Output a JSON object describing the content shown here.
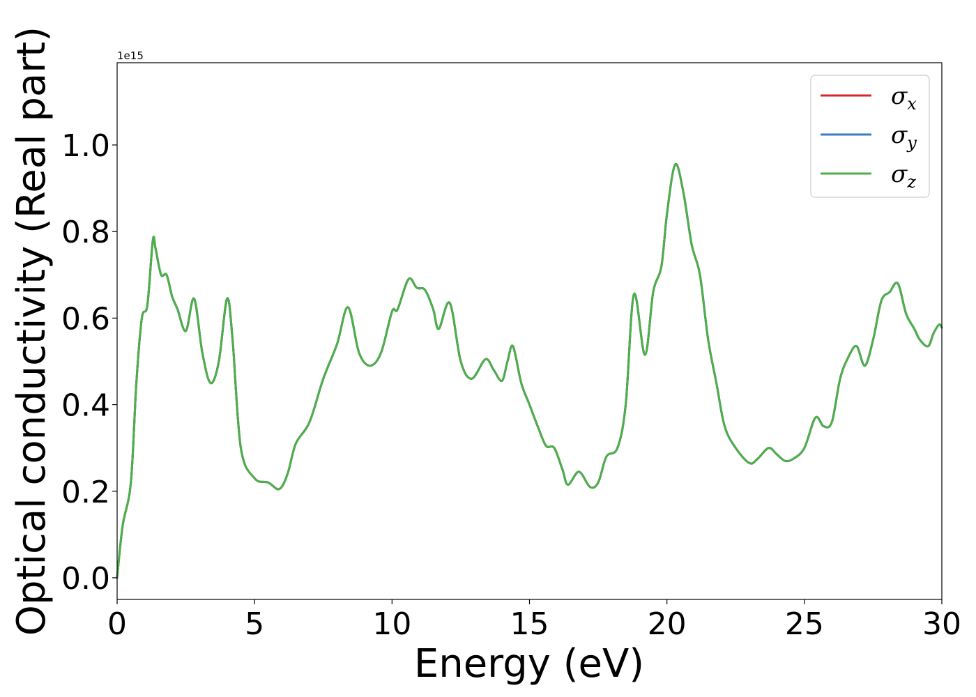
{
  "chart_data": {
    "type": "line",
    "title": "",
    "xlabel": "Energy (eV)",
    "ylabel": "Optical conductivity (Real part)",
    "y_offset_label": "1e15",
    "xlim": [
      0,
      30
    ],
    "ylim": [
      -0.05,
      1.19
    ],
    "xticks": [
      0,
      5,
      10,
      15,
      20,
      25,
      30
    ],
    "xtick_labels": [
      "0",
      "5",
      "10",
      "15",
      "20",
      "25",
      "30"
    ],
    "yticks": [
      0.0,
      0.2,
      0.4,
      0.6,
      0.8,
      1.0
    ],
    "ytick_labels": [
      "0.0",
      "0.2",
      "0.4",
      "0.6",
      "0.8",
      "1.0"
    ],
    "grid": false,
    "legend_position": "top-right",
    "x": [
      0,
      0.2,
      0.5,
      0.7,
      0.9,
      1.1,
      1.3,
      1.4,
      1.6,
      1.8,
      2.0,
      2.2,
      2.5,
      2.8,
      3.1,
      3.4,
      3.7,
      4.0,
      4.2,
      4.5,
      5.0,
      5.5,
      5.9,
      6.2,
      6.5,
      7.0,
      7.5,
      8.0,
      8.4,
      8.8,
      9.2,
      9.6,
      10.0,
      10.2,
      10.6,
      10.9,
      11.2,
      11.5,
      11.7,
      12.1,
      12.5,
      12.9,
      13.4,
      13.7,
      14.0,
      14.2,
      14.4,
      14.7,
      15.0,
      15.3,
      15.6,
      15.9,
      16.2,
      16.4,
      16.8,
      17.2,
      17.5,
      17.8,
      18.2,
      18.5,
      18.8,
      19.2,
      19.5,
      19.8,
      20.0,
      20.3,
      20.6,
      20.9,
      21.2,
      21.5,
      21.8,
      22.1,
      22.5,
      23.0,
      23.3,
      23.7,
      24.0,
      24.3,
      24.6,
      25.0,
      25.4,
      25.7,
      26.0,
      26.3,
      26.6,
      26.9,
      27.2,
      27.5,
      27.8,
      28.1,
      28.4,
      28.7,
      29.0,
      29.2,
      29.5,
      29.7,
      29.9,
      30.0
    ],
    "series": [
      {
        "name": "σx",
        "base": "σ",
        "sub": "x",
        "color": "#d62728",
        "values": [
          0.0,
          0.12,
          0.22,
          0.45,
          0.6,
          0.63,
          0.78,
          0.76,
          0.7,
          0.7,
          0.65,
          0.62,
          0.57,
          0.645,
          0.52,
          0.45,
          0.5,
          0.645,
          0.55,
          0.3,
          0.23,
          0.22,
          0.205,
          0.24,
          0.31,
          0.36,
          0.46,
          0.54,
          0.625,
          0.52,
          0.49,
          0.52,
          0.615,
          0.62,
          0.69,
          0.67,
          0.665,
          0.62,
          0.575,
          0.635,
          0.5,
          0.46,
          0.505,
          0.48,
          0.455,
          0.5,
          0.535,
          0.45,
          0.4,
          0.35,
          0.305,
          0.3,
          0.25,
          0.215,
          0.245,
          0.21,
          0.22,
          0.28,
          0.3,
          0.4,
          0.655,
          0.515,
          0.66,
          0.72,
          0.84,
          0.955,
          0.89,
          0.77,
          0.7,
          0.55,
          0.45,
          0.35,
          0.3,
          0.265,
          0.275,
          0.3,
          0.285,
          0.27,
          0.275,
          0.3,
          0.37,
          0.35,
          0.36,
          0.46,
          0.51,
          0.535,
          0.49,
          0.55,
          0.64,
          0.66,
          0.68,
          0.61,
          0.575,
          0.55,
          0.535,
          0.565,
          0.585,
          0.578
        ]
      },
      {
        "name": "σy",
        "base": "σ",
        "sub": "y",
        "color": "#3a7ebf",
        "values": [
          0.0,
          0.12,
          0.22,
          0.45,
          0.6,
          0.63,
          0.78,
          0.76,
          0.7,
          0.7,
          0.65,
          0.62,
          0.57,
          0.645,
          0.52,
          0.45,
          0.5,
          0.645,
          0.55,
          0.3,
          0.23,
          0.22,
          0.205,
          0.24,
          0.31,
          0.36,
          0.46,
          0.54,
          0.625,
          0.52,
          0.49,
          0.52,
          0.615,
          0.62,
          0.69,
          0.67,
          0.665,
          0.62,
          0.575,
          0.635,
          0.5,
          0.46,
          0.505,
          0.48,
          0.455,
          0.5,
          0.535,
          0.45,
          0.4,
          0.35,
          0.305,
          0.3,
          0.25,
          0.215,
          0.245,
          0.21,
          0.22,
          0.28,
          0.3,
          0.4,
          0.655,
          0.515,
          0.66,
          0.72,
          0.84,
          0.955,
          0.89,
          0.77,
          0.7,
          0.55,
          0.45,
          0.35,
          0.3,
          0.265,
          0.275,
          0.3,
          0.285,
          0.27,
          0.275,
          0.3,
          0.37,
          0.35,
          0.36,
          0.46,
          0.51,
          0.535,
          0.49,
          0.55,
          0.64,
          0.66,
          0.68,
          0.61,
          0.575,
          0.55,
          0.535,
          0.565,
          0.585,
          0.578
        ]
      },
      {
        "name": "σz",
        "base": "σ",
        "sub": "z",
        "color": "#4daf4a",
        "values": [
          0.0,
          0.12,
          0.22,
          0.45,
          0.6,
          0.63,
          0.78,
          0.76,
          0.7,
          0.7,
          0.65,
          0.62,
          0.57,
          0.645,
          0.52,
          0.45,
          0.5,
          0.645,
          0.55,
          0.3,
          0.23,
          0.22,
          0.205,
          0.24,
          0.31,
          0.36,
          0.46,
          0.54,
          0.625,
          0.52,
          0.49,
          0.52,
          0.615,
          0.62,
          0.69,
          0.67,
          0.665,
          0.62,
          0.575,
          0.635,
          0.5,
          0.46,
          0.505,
          0.48,
          0.455,
          0.5,
          0.535,
          0.45,
          0.4,
          0.35,
          0.305,
          0.3,
          0.25,
          0.215,
          0.245,
          0.21,
          0.22,
          0.28,
          0.3,
          0.4,
          0.655,
          0.515,
          0.66,
          0.72,
          0.84,
          0.955,
          0.89,
          0.77,
          0.7,
          0.55,
          0.45,
          0.35,
          0.3,
          0.265,
          0.275,
          0.3,
          0.285,
          0.27,
          0.275,
          0.3,
          0.37,
          0.35,
          0.36,
          0.46,
          0.51,
          0.535,
          0.49,
          0.55,
          0.64,
          0.66,
          0.68,
          0.61,
          0.575,
          0.55,
          0.535,
          0.565,
          0.585,
          0.578
        ]
      }
    ]
  }
}
